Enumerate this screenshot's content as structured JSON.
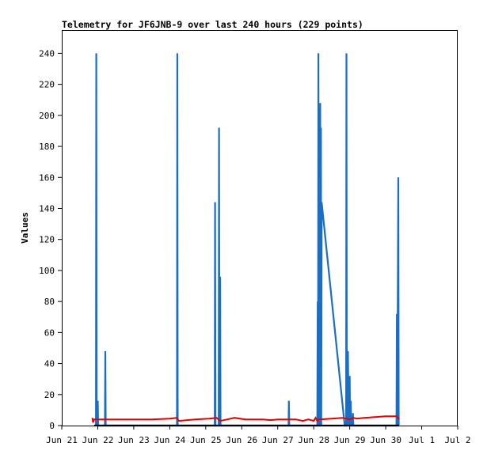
{
  "chart_data": {
    "type": "line",
    "title": "Telemetry for JF6JNB-9 over last 240 hours (229 points)",
    "xlabel": "",
    "ylabel": "Values",
    "xlim": [
      "Jun 21",
      "Jul 2"
    ],
    "ylim": [
      0,
      255
    ],
    "x_tick_labels": [
      "Jun 21",
      "Jun 22",
      "Jun 23",
      "Jun 24",
      "Jun 25",
      "Jun 26",
      "Jun 27",
      "Jun 28",
      "Jun 29",
      "Jun 30",
      "Jul 1",
      "Jul 2"
    ],
    "y_ticks": [
      0,
      20,
      40,
      60,
      80,
      100,
      120,
      140,
      160,
      180,
      200,
      220,
      240
    ],
    "grid": false,
    "legend": "none",
    "colors": {
      "blue_series": "#1a6fc4",
      "red_series": "#e00000",
      "axis": "#000000"
    },
    "series": [
      {
        "color": "#1a6fc4",
        "points": [
          [
            21.95,
            0
          ],
          [
            21.96,
            240
          ],
          [
            21.97,
            0
          ],
          [
            22.0,
            16
          ],
          [
            22.01,
            0
          ],
          [
            22.2,
            0
          ],
          [
            22.21,
            48
          ],
          [
            22.22,
            0
          ],
          [
            24.2,
            0
          ],
          [
            24.21,
            240
          ],
          [
            24.22,
            0
          ],
          [
            25.25,
            0
          ],
          [
            25.26,
            144
          ],
          [
            25.27,
            0
          ],
          [
            25.36,
            0
          ],
          [
            25.37,
            192
          ],
          [
            25.38,
            0
          ],
          [
            25.4,
            96
          ],
          [
            25.41,
            0
          ],
          [
            27.3,
            0
          ],
          [
            27.31,
            16
          ],
          [
            27.32,
            0
          ],
          [
            28.1,
            0
          ],
          [
            28.11,
            80
          ],
          [
            28.12,
            0
          ],
          [
            28.13,
            240
          ],
          [
            28.14,
            0
          ],
          [
            28.17,
            0
          ],
          [
            28.18,
            208
          ],
          [
            28.19,
            0
          ],
          [
            28.2,
            192
          ],
          [
            28.21,
            0
          ],
          [
            28.22,
            144
          ],
          [
            28.86,
            0
          ],
          [
            28.9,
            0
          ],
          [
            28.91,
            240
          ],
          [
            28.92,
            0
          ],
          [
            28.95,
            48
          ],
          [
            28.97,
            0
          ],
          [
            29.0,
            32
          ],
          [
            29.01,
            0
          ],
          [
            29.03,
            16
          ],
          [
            29.04,
            0
          ],
          [
            29.08,
            0
          ],
          [
            29.09,
            8
          ],
          [
            29.1,
            0
          ],
          [
            30.3,
            0
          ],
          [
            30.31,
            72
          ],
          [
            30.32,
            0
          ],
          [
            30.35,
            160
          ],
          [
            30.36,
            0
          ]
        ]
      },
      {
        "color": "#e00000",
        "points": [
          [
            21.85,
            5
          ],
          [
            21.87,
            2
          ],
          [
            21.9,
            4
          ],
          [
            22.3,
            4
          ],
          [
            22.8,
            4
          ],
          [
            23.2,
            4
          ],
          [
            23.5,
            4
          ],
          [
            24.0,
            4.5
          ],
          [
            24.2,
            5
          ],
          [
            24.25,
            3
          ],
          [
            24.7,
            4
          ],
          [
            25.1,
            4.5
          ],
          [
            25.3,
            5
          ],
          [
            25.4,
            3
          ],
          [
            25.6,
            4
          ],
          [
            25.8,
            5
          ],
          [
            26.1,
            4
          ],
          [
            26.6,
            4
          ],
          [
            26.8,
            3.5
          ],
          [
            27.0,
            4
          ],
          [
            27.5,
            4
          ],
          [
            27.7,
            3
          ],
          [
            27.85,
            4
          ],
          [
            28.0,
            3
          ],
          [
            28.05,
            5
          ],
          [
            28.1,
            3
          ],
          [
            28.15,
            4
          ],
          [
            28.5,
            4.5
          ],
          [
            28.8,
            5
          ],
          [
            29.0,
            4
          ],
          [
            29.1,
            5
          ],
          [
            29.2,
            4.5
          ],
          [
            29.4,
            5
          ],
          [
            29.7,
            5.5
          ],
          [
            30.0,
            6
          ],
          [
            30.3,
            6
          ],
          [
            30.35,
            5
          ],
          [
            30.37,
            4
          ]
        ]
      },
      {
        "color": "#000000",
        "points": [
          [
            21.9,
            0
          ],
          [
            30.37,
            0
          ]
        ]
      }
    ]
  }
}
